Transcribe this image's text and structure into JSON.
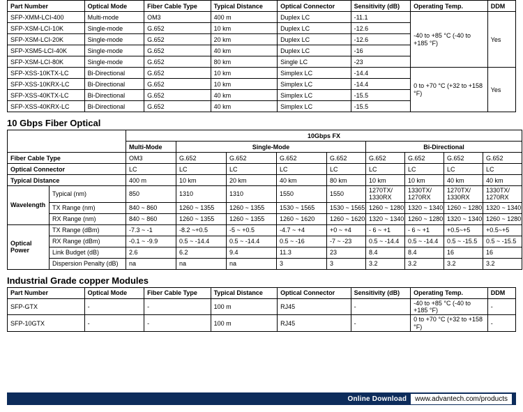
{
  "colors": {
    "footer_bg": "#0d2c5b"
  },
  "table1": {
    "headers": [
      "Part Number",
      "Optical Mode",
      "Fiber Cable Type",
      "Typical Distance",
      "Optical Connector",
      "Sensitivity (dB)",
      "Operating Temp.",
      "DDM"
    ],
    "rows": [
      [
        "SFP-XMM-LCI-400",
        "Multi-mode",
        "OM3",
        "400 m",
        "Duplex LC",
        "-11.1"
      ],
      [
        "SFP-XSM-LCI-10K",
        "Single-mode",
        "G.652",
        "10 km",
        "Duplex LC",
        "-12.6"
      ],
      [
        "SFP-XSM-LCI-20K",
        "Single-mode",
        "G.652",
        "20 km",
        "Duplex LC",
        "-12.6"
      ],
      [
        "SFP-XSM5-LCI-40K",
        "Single-mode",
        "G.652",
        "40 km",
        "Duplex LC",
        "-16"
      ],
      [
        "SFP-XSM-LCI-80K",
        "Single-mode",
        "G.652",
        "80 km",
        "Single LC",
        "-23"
      ],
      [
        "SFP-XSS-10KTX-LC",
        "Bi-Directional",
        "G.652",
        "10 km",
        "Simplex LC",
        "-14.4"
      ],
      [
        "SFP-XSS-10KRX-LC",
        "Bi-Directional",
        "G.652",
        "10 km",
        "Simplex LC",
        "-14.4"
      ],
      [
        "SFP-XSS-40KTX-LC",
        "Bi-Directional",
        "G.652",
        "40 km",
        "Simplex LC",
        "-15.5"
      ],
      [
        "SFP-XSS-40KRX-LC",
        "Bi-Directional",
        "G.652",
        "40 km",
        "Simplex LC",
        "-15.5"
      ]
    ],
    "temp1": "-40 to +85 °C\n(-40 to +185 °F)",
    "ddm1": "Yes",
    "temp2": "0 to +70 °C\n(+32 to +158 °F)",
    "ddm2": "Yes"
  },
  "section2_title": "10 Gbps Fiber Optical",
  "table2": {
    "top_header": "10Gbps FX",
    "group_headers": [
      "Multi-Mode",
      "Single-Mode",
      "Bi-Directional"
    ],
    "row_labels": [
      "Fiber Cable Type",
      "Optical Connector",
      "Typical Distance"
    ],
    "fiber_row": [
      "OM3",
      "G.652",
      "G.652",
      "G.652",
      "G.652",
      "G.652",
      "G.652",
      "G.652",
      "G.652"
    ],
    "conn_row": [
      "LC",
      "LC",
      "LC",
      "LC",
      "LC",
      "LC",
      "LC",
      "LC",
      "LC"
    ],
    "dist_row": [
      "400 m",
      "10 km",
      "20 km",
      "40 km",
      "80 km",
      "10 km",
      "10 km",
      "40 km",
      "40 km"
    ],
    "wavelength_label": "Wavelength",
    "wl_typical_label": "Typical (nm)",
    "wl_typical": [
      "850",
      "1310",
      "1310",
      "1550",
      "1550",
      "1270TX/\n1330RX",
      "1330TX/\n1270RX",
      "1270TX/\n1330RX",
      "1330TX/\n1270RX"
    ],
    "wl_tx_label": "TX Range (nm)",
    "wl_tx": [
      "840 ~ 860",
      "1260 ~ 1355",
      "1260 ~ 1355",
      "1530 ~ 1565",
      "1530 ~ 1565",
      "1260 ~ 1280",
      "1320 ~ 1340",
      "1260 ~ 1280",
      "1320 ~ 1340"
    ],
    "wl_rx_label": "RX Range (nm)",
    "wl_rx": [
      "840 ~ 860",
      "1260 ~ 1355",
      "1260 ~ 1355",
      "1260 ~ 1620",
      "1260 ~ 1620",
      "1320 ~ 1340",
      "1260 ~ 1280",
      "1320 ~ 1340",
      "1260 ~ 1280"
    ],
    "op_label": "Optical\nPower",
    "op_tx_label": "TX Range (dBm)",
    "op_tx": [
      "-7.3 ~ -1",
      "-8.2 ~+0.5",
      "-5 ~ +0.5",
      "-4.7 ~ +4",
      "+0 ~ +4",
      "- 6 ~ +1",
      "- 6 ~ +1",
      "+0.5~+5",
      "+0.5~+5"
    ],
    "op_rx_label": "RX Range (dBm)",
    "op_rx": [
      "-0.1 ~ -9.9",
      "0.5 ~ -14.4",
      "0.5 ~ -14.4",
      "0.5 ~ -16",
      "-7 ~ -23",
      "0.5 ~ -14.4",
      "0.5 ~ -14.4",
      "0.5 ~ -15.5",
      "0.5 ~ -15.5"
    ],
    "op_lb_label": "Link Budget (dB)",
    "op_lb": [
      "2.6",
      "6.2",
      "9.4",
      "11.3",
      "23",
      "8.4",
      "8.4",
      "16",
      "16"
    ],
    "op_dp_label": "Dispersion Penalty (dB)",
    "op_dp": [
      "na",
      "na",
      "na",
      "3",
      "3",
      "3.2",
      "3.2",
      "3.2",
      "3.2"
    ]
  },
  "section3_title": "Industrial Grade copper Modules",
  "table3": {
    "headers": [
      "Part Number",
      "Optical Mode",
      "Fiber Cable Type",
      "Typical Distance",
      "Optical Connector",
      "Sensitivity (dB)",
      "Operating Temp.",
      "DDM"
    ],
    "rows": [
      [
        "SFP-GTX",
        "-",
        "-",
        "100 m",
        "RJ45",
        "-",
        "-40 to +85 °C\n(-40 to +185 °F)",
        "-"
      ],
      [
        "SFP-10GTX",
        "-",
        "-",
        "100 m",
        "RJ45",
        "-",
        "0 to +70 °C\n(+32 to +158 °F)",
        "-"
      ]
    ]
  },
  "footer": {
    "label": "Online Download",
    "url": "www.advantech.com/products"
  }
}
